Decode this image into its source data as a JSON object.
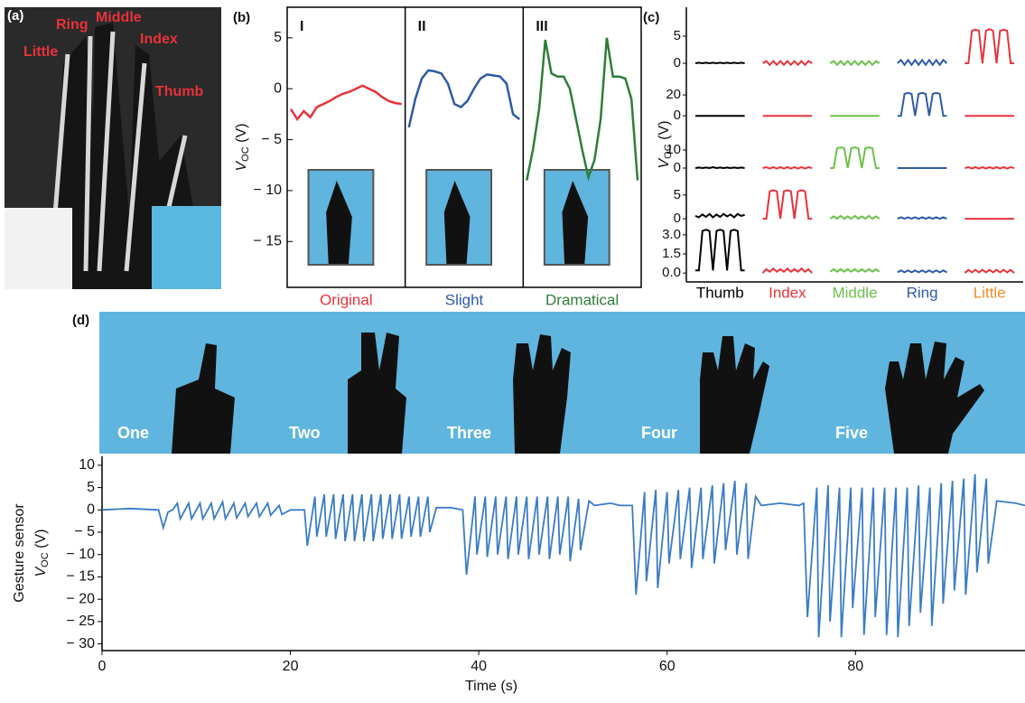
{
  "panel_a": {
    "label": "(a)",
    "finger_labels": [
      "Little",
      "Ring",
      "Middle",
      "Index",
      "Thumb"
    ]
  },
  "panel_d_photo": {
    "gesture_labels": [
      "One",
      "Two",
      "Three",
      "Four",
      "Five"
    ]
  },
  "chart_data": [
    {
      "type": "line",
      "panel_label": "(b)",
      "y_label": {
        "symbol": "V",
        "subscript": "OC",
        "unit": " (V)"
      },
      "ylim": [
        -19.5,
        8
      ],
      "yticks": [
        5,
        0,
        {
          "value": -5,
          "label": "− 5"
        },
        {
          "value": -10,
          "label": "− 10"
        },
        {
          "value": -15,
          "label": "− 15"
        }
      ],
      "series": [
        {
          "name": "Original",
          "numeral": "I",
          "color": "#e8323a",
          "values": [
            -2,
            -3,
            -2.2,
            -2.8,
            -1.8,
            -1.5,
            -1.2,
            -0.8,
            -0.5,
            -0.3,
            0,
            0.3,
            0,
            -0.3,
            -0.8,
            -1.2,
            -1.4,
            -1.5
          ]
        },
        {
          "name": "Slight",
          "numeral": "II",
          "color": "#2f5aa8",
          "values": [
            -3.8,
            -1,
            1,
            1.8,
            1.7,
            1.5,
            0.5,
            -1.5,
            -1.8,
            -1.2,
            0,
            1,
            1.4,
            1.3,
            1.2,
            0.5,
            -2.5,
            -3
          ]
        },
        {
          "name": "Dramatical",
          "numeral": "III",
          "color": "#2e7d3a",
          "values": [
            -9,
            -6,
            -2,
            4.8,
            1.5,
            1.2,
            1.2,
            0,
            -3,
            -6,
            -8.7,
            -7,
            -3,
            5,
            1.2,
            1.2,
            1,
            -1,
            -9
          ]
        }
      ]
    },
    {
      "type": "grid",
      "panel_label": "(c)",
      "y_label": {
        "symbol": "V",
        "subscript": "OC",
        "unit": " (V)"
      },
      "columns": [
        {
          "name": "Thumb",
          "color": "#000000",
          "label_color": "#000000"
        },
        {
          "name": "Index",
          "color": "#e8323a",
          "label_color": "#e8323a"
        },
        {
          "name": "Middle",
          "color": "#6cc04a",
          "label_color": "#6cc04a"
        },
        {
          "name": "Ring",
          "color": "#2f5aa8",
          "label_color": "#2f5aa8"
        },
        {
          "name": "Little",
          "color": "#e8323a",
          "label_color": "#f08a2c"
        }
      ],
      "rows": [
        {
          "ylim": [
            -2,
            10
          ],
          "yticks": [
            5,
            0
          ],
          "series": [
            [
              0,
              0.1,
              0,
              0.1,
              0,
              0.1,
              0,
              0.1,
              0,
              0.1,
              0,
              0.1,
              0,
              0.1,
              0
            ],
            [
              0,
              0.4,
              -0.3,
              0.4,
              -0.3,
              0.4,
              -0.3,
              0.4,
              -0.3,
              0.4,
              -0.3,
              0.4,
              -0.3,
              0.4,
              0
            ],
            [
              0,
              0.4,
              -0.3,
              0.4,
              -0.3,
              0.4,
              -0.3,
              0.4,
              -0.3,
              0.4,
              -0.3,
              0.4,
              -0.3,
              0.4,
              0
            ],
            [
              0,
              0.6,
              -0.3,
              0.6,
              -0.3,
              0.6,
              -0.3,
              0.6,
              -0.3,
              0.6,
              -0.3,
              0.6,
              -0.3,
              0.6,
              0
            ],
            [
              0,
              0,
              6,
              6.2,
              6,
              0,
              6,
              6.3,
              6,
              0,
              6,
              6.2,
              6,
              0,
              0
            ]
          ]
        },
        {
          "ylim": [
            -12,
            40
          ],
          "yticks": [
            20,
            0
          ],
          "series": [
            [
              0,
              0,
              0,
              0,
              0,
              0,
              0,
              0,
              0,
              0,
              0,
              0,
              0,
              0,
              0
            ],
            [
              0,
              0,
              0,
              0,
              0,
              0,
              0,
              0,
              0,
              0,
              0,
              0,
              0,
              0,
              0
            ],
            [
              0,
              0,
              0,
              0,
              0,
              0,
              0,
              0,
              0,
              0,
              0,
              0,
              0,
              0,
              0
            ],
            [
              0,
              0,
              21,
              22,
              21,
              0,
              21,
              22,
              21,
              0,
              21,
              22,
              21,
              0,
              0
            ],
            [
              0,
              0,
              0,
              0,
              0,
              0,
              0,
              0,
              0,
              0,
              0,
              0,
              0,
              0,
              0
            ]
          ]
        },
        {
          "ylim": [
            -7,
            22
          ],
          "yticks": [
            10,
            0
          ],
          "series": [
            [
              0,
              0.3,
              0,
              0.3,
              0,
              0.5,
              0,
              0.3,
              0,
              0.3,
              0,
              0.3,
              0,
              0.3,
              0
            ],
            [
              0,
              0.5,
              -0.3,
              0.5,
              -0.3,
              0.5,
              -0.3,
              0.5,
              -0.3,
              0.5,
              -0.3,
              0.5,
              -0.3,
              0.5,
              0
            ],
            [
              0,
              0,
              11,
              11.5,
              11,
              0,
              11,
              11.5,
              11,
              0,
              11,
              11.5,
              11,
              0,
              0
            ],
            [
              0,
              0,
              0,
              0,
              0,
              0,
              0,
              0,
              0,
              0,
              0,
              0,
              0,
              0,
              0
            ],
            [
              0,
              0.5,
              -0.3,
              0.5,
              -0.3,
              0.5,
              -0.3,
              0.5,
              -0.3,
              0.5,
              -0.3,
              0.5,
              -0.3,
              0.5,
              0
            ]
          ]
        },
        {
          "ylim": [
            -1.5,
            8
          ],
          "yticks": [
            5,
            0
          ],
          "series": [
            [
              0.6,
              0.3,
              0.9,
              0.4,
              1,
              0.3,
              0.9,
              0.4,
              1,
              0.5,
              0.9,
              0.3,
              1,
              0.6,
              0.8
            ],
            [
              0,
              0,
              5.8,
              6,
              5.8,
              0,
              5.8,
              6,
              5.8,
              0,
              5.8,
              6,
              5.8,
              0,
              0
            ],
            [
              0,
              0.5,
              0,
              0.6,
              0,
              0.5,
              0,
              0.6,
              0,
              0.5,
              0,
              0.6,
              0,
              0.5,
              0
            ],
            [
              0,
              0.3,
              0,
              0.3,
              0,
              0.3,
              0,
              0.3,
              0,
              0.3,
              0,
              0.3,
              0,
              0.3,
              0
            ],
            [
              0,
              0,
              0,
              0,
              0,
              0,
              0,
              0,
              0,
              0,
              0,
              0,
              0,
              0,
              0
            ]
          ]
        },
        {
          "ylim": [
            -0.7,
            3.7
          ],
          "yticks": [
            {
              "value": 3,
              "label": "3.0"
            },
            {
              "value": 1.5,
              "label": "1.5"
            },
            {
              "value": 0,
              "label": "0.0"
            }
          ],
          "series": [
            [
              0.2,
              0.2,
              3.3,
              3.4,
              3.3,
              0.2,
              3.3,
              3.4,
              3.3,
              0.2,
              3.3,
              3.4,
              3.3,
              0.2,
              0.2
            ],
            [
              0,
              0.3,
              0.1,
              0.35,
              0.1,
              0.3,
              0.1,
              0.35,
              0.1,
              0.3,
              0.1,
              0.35,
              0.1,
              0.3,
              0
            ],
            [
              0.1,
              0.3,
              0.1,
              0.3,
              0.1,
              0.3,
              0.1,
              0.3,
              0.1,
              0.3,
              0.1,
              0.3,
              0.1,
              0.3,
              0.1
            ],
            [
              0.05,
              0.2,
              0.05,
              0.2,
              0.05,
              0.2,
              0.05,
              0.2,
              0.05,
              0.2,
              0.05,
              0.2,
              0.05,
              0.2,
              0.05
            ],
            [
              0,
              0.25,
              0.05,
              0.25,
              0.05,
              0.25,
              0.05,
              0.25,
              0.05,
              0.25,
              0.05,
              0.25,
              0.05,
              0.25,
              0
            ]
          ]
        }
      ]
    },
    {
      "type": "line",
      "panel_label": "(d)",
      "x_label": "Time (s)",
      "y_label": {
        "line1": "Gesture sensor",
        "symbol": "V",
        "subscript": "OC",
        "unit": " (V)"
      },
      "xlim": [
        0,
        98
      ],
      "xticks": [
        0,
        20,
        40,
        60,
        80
      ],
      "ylim": [
        -31.5,
        12
      ],
      "yticks": [
        10,
        5,
        0,
        {
          "value": -5,
          "label": "− 5"
        },
        {
          "value": -10,
          "label": "− 10"
        },
        {
          "value": -15,
          "label": "− 15"
        },
        {
          "value": -20,
          "label": "− 20"
        },
        {
          "value": -25,
          "label": "− 25"
        },
        {
          "value": -30,
          "label": "− 30"
        }
      ],
      "series": [
        {
          "color": "#3a7cc4",
          "x": [
            0,
            3,
            6,
            6.5,
            7,
            7.5,
            8,
            8.3,
            9.2,
            9.5,
            10.4,
            10.7,
            11.6,
            11.9,
            12.8,
            13.1,
            14,
            14.3,
            15.2,
            15.5,
            16.4,
            16.7,
            17.6,
            17.9,
            18.8,
            19.1,
            20,
            21.5,
            21.8,
            22.6,
            22.8,
            23.6,
            23.8,
            24.6,
            24.8,
            25.6,
            25.8,
            26.6,
            26.8,
            27.6,
            27.8,
            28.6,
            28.8,
            29.6,
            29.8,
            30.6,
            30.8,
            31.6,
            31.8,
            32.6,
            32.8,
            33.6,
            33.8,
            34.6,
            34.8,
            35.5,
            37,
            38.3,
            38.7,
            39.6,
            39.8,
            40.7,
            40.9,
            41.8,
            42,
            42.9,
            43.1,
            44,
            44.2,
            45.1,
            45.3,
            46.2,
            46.4,
            47.3,
            47.5,
            48.4,
            48.6,
            49.5,
            49.7,
            50.6,
            50.8,
            51.7,
            52.3,
            54,
            55,
            56.3,
            56.7,
            57.6,
            57.8,
            58.8,
            59,
            60,
            60.2,
            61.2,
            61.4,
            62.4,
            62.6,
            63.6,
            63.8,
            64.8,
            65,
            66,
            66.2,
            67.2,
            67.4,
            68.4,
            68.6,
            69.4,
            70,
            72,
            74,
            74.5,
            74.9,
            75.9,
            76.1,
            77.1,
            77.3,
            78.3,
            78.5,
            79.5,
            79.7,
            80.7,
            80.9,
            81.9,
            82.1,
            83.1,
            83.3,
            84.3,
            84.5,
            85.5,
            85.7,
            86.7,
            86.9,
            87.9,
            88.1,
            89.1,
            89.3,
            90.3,
            90.5,
            91.5,
            91.7,
            92.7,
            92.9,
            93.9,
            94.1,
            95,
            97,
            98
          ],
          "values": [
            0,
            0.3,
            0,
            -4,
            -0.5,
            0,
            1.5,
            -2,
            1.5,
            -2,
            1.5,
            -2,
            1.5,
            -2,
            1.8,
            -2,
            1.5,
            -1.8,
            1.5,
            -1.5,
            1.5,
            -1.5,
            1.5,
            -1.2,
            1,
            -1,
            0,
            0,
            -8,
            3,
            -6,
            3.5,
            -6,
            3.5,
            -6.5,
            3.5,
            -7,
            3.5,
            -7,
            3.5,
            -7,
            3.5,
            -7,
            3.5,
            -6.5,
            3.5,
            -6.5,
            3.5,
            -6.5,
            3,
            -6,
            3,
            -6,
            3,
            -5,
            0.5,
            0.5,
            0,
            -14.5,
            3,
            -10,
            3,
            -10.5,
            3,
            -10,
            3,
            -11,
            3,
            -10,
            3,
            -11,
            3,
            -10,
            3,
            -11,
            3,
            -10,
            3,
            -11.5,
            2.5,
            -9,
            2,
            1,
            1.5,
            1,
            1,
            -19,
            4,
            -16,
            4.5,
            -17.5,
            4,
            -12,
            4.5,
            -11,
            5,
            -13,
            5,
            -11,
            5.5,
            -12,
            6,
            -9,
            6.5,
            -10,
            6,
            -11,
            3,
            1,
            1.5,
            1,
            1.5,
            -24,
            5,
            -28.5,
            5.5,
            -25,
            5,
            -28.5,
            5,
            -22,
            5,
            -28,
            5,
            -24,
            5,
            -28,
            5,
            -28.5,
            5,
            -26,
            5.5,
            -23,
            5,
            -26,
            6,
            -21,
            6.5,
            -18,
            7,
            -19,
            8,
            -14,
            7,
            -12,
            2,
            1.5,
            1
          ]
        }
      ]
    }
  ]
}
